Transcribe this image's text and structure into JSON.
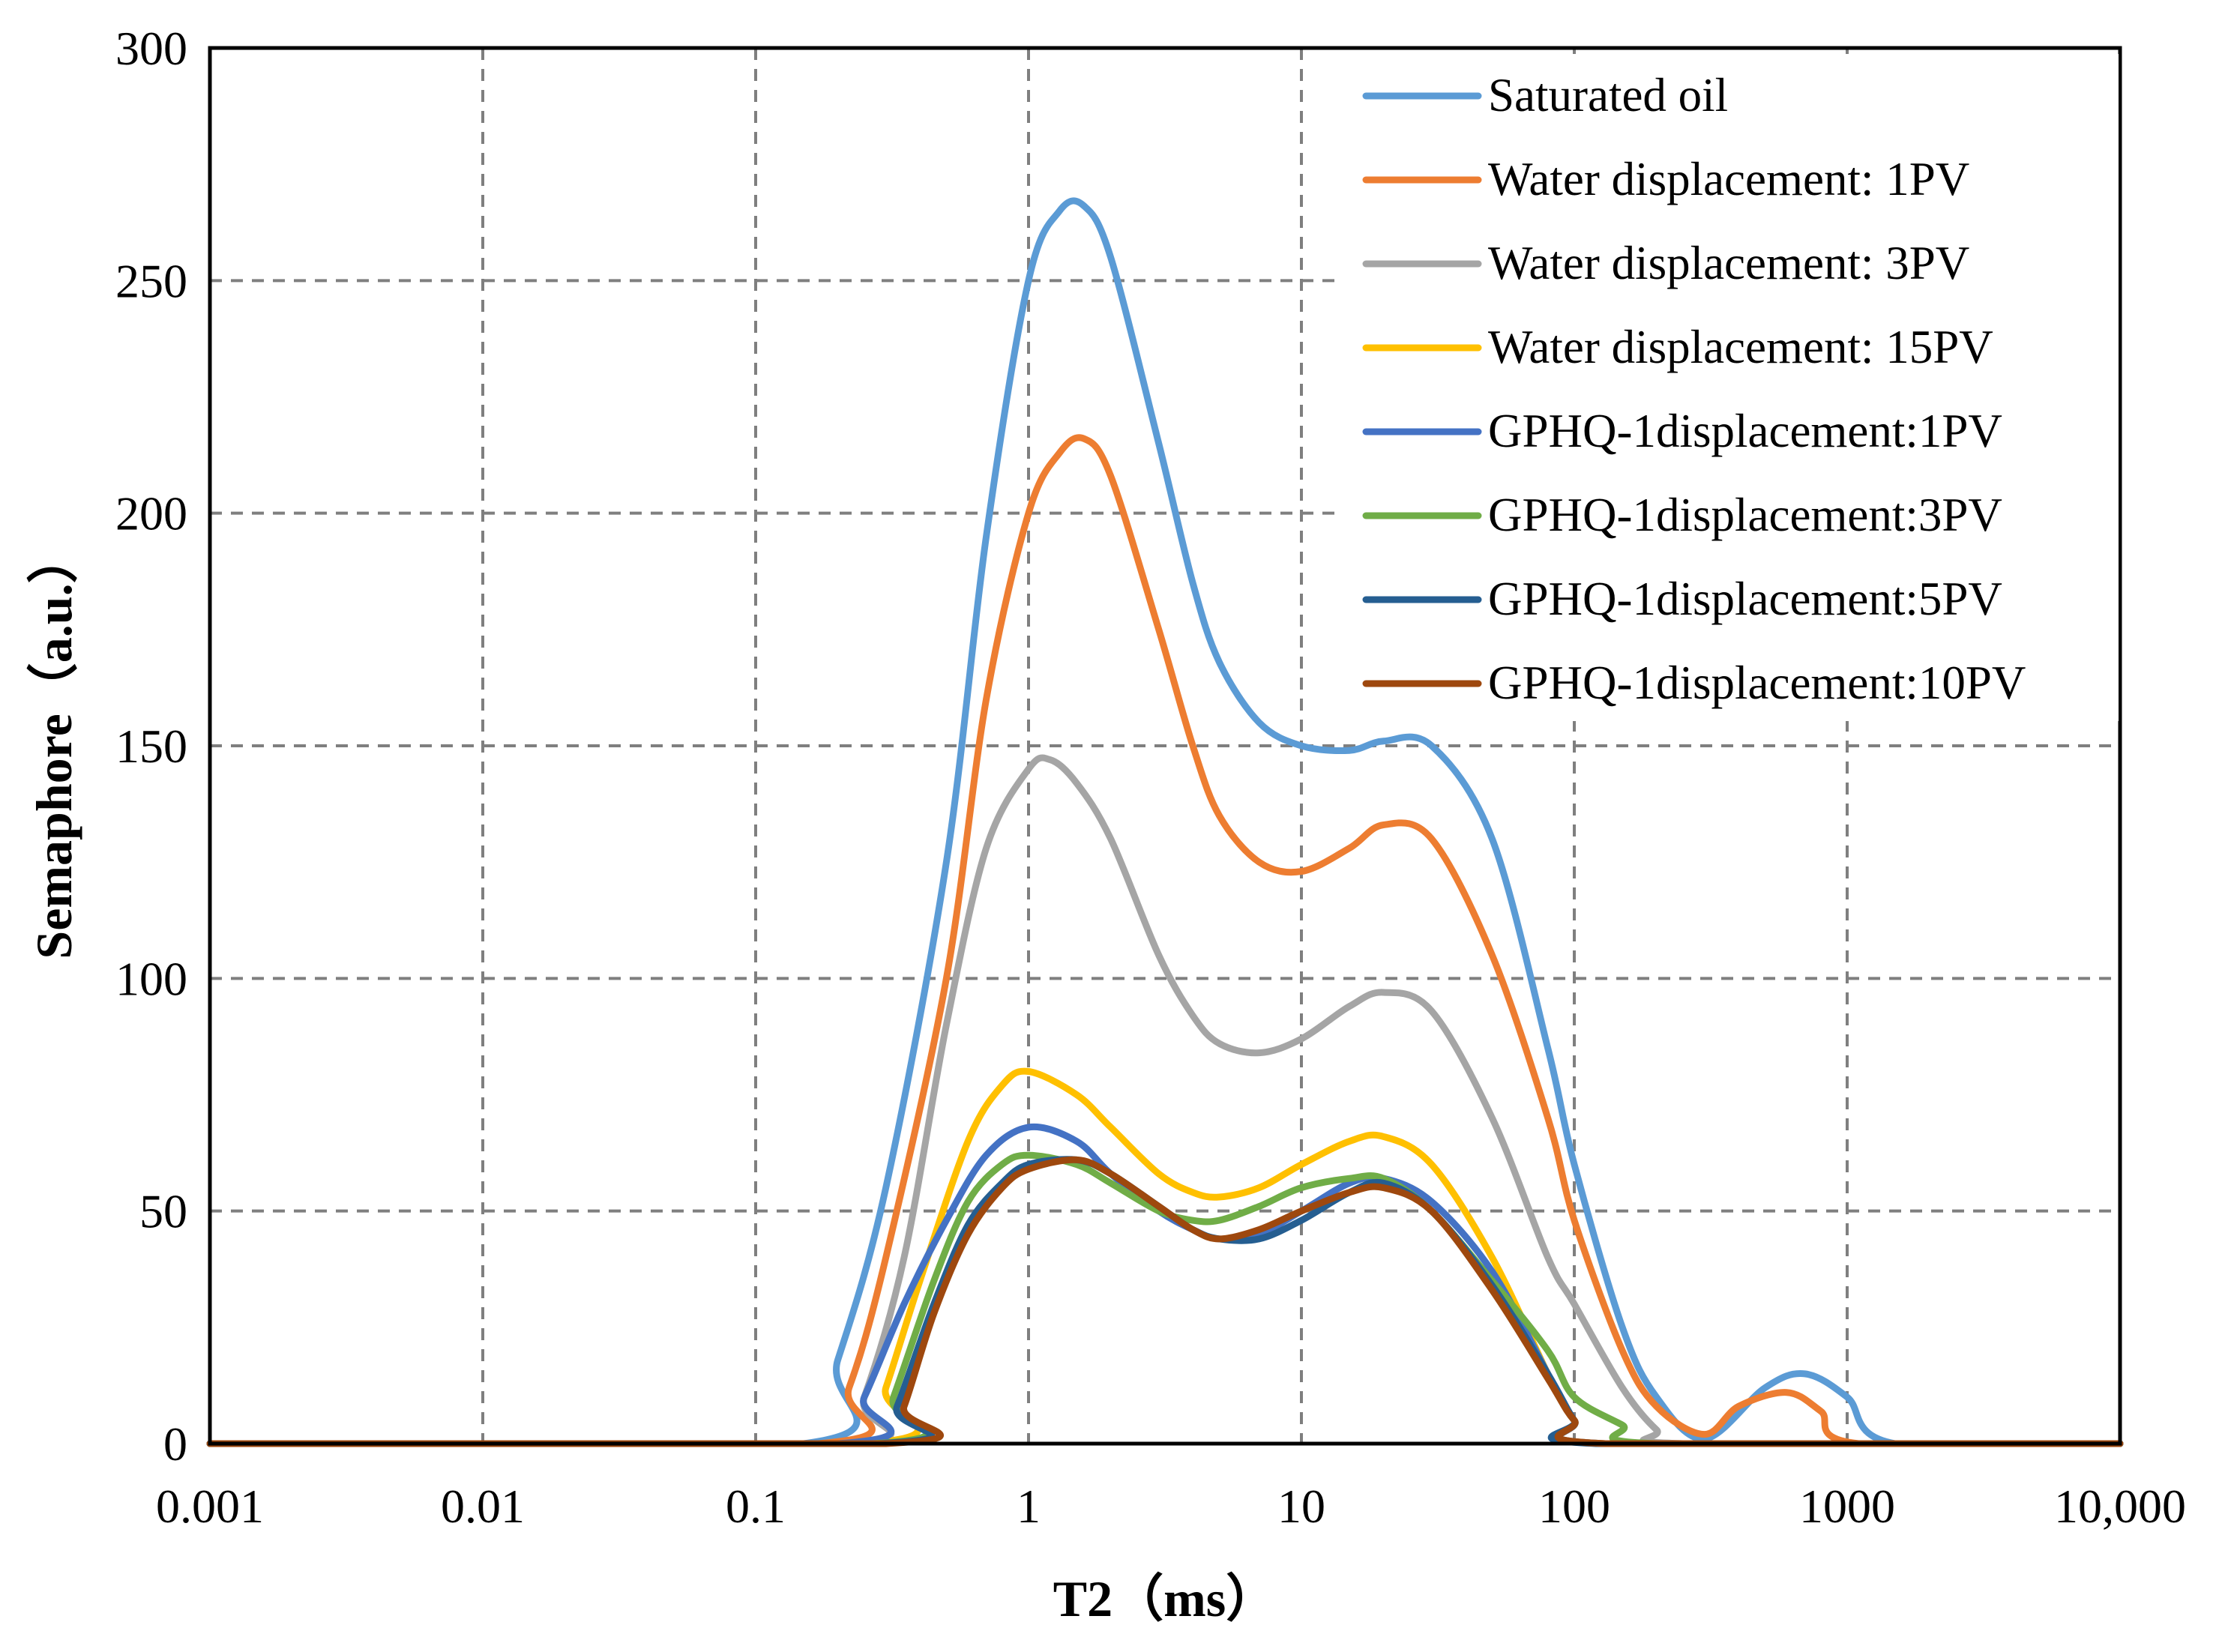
{
  "chart_data": {
    "type": "line",
    "title": "",
    "xlabel": "T2（ms）",
    "ylabel": "Semaphore（a.u.）",
    "xscale": "log",
    "xlim": [
      0.001,
      10000
    ],
    "ylim": [
      0,
      300
    ],
    "xticks": [
      0.001,
      0.01,
      0.1,
      1,
      10,
      100,
      1000,
      10000
    ],
    "xtick_labels": [
      "0.001",
      "0.01",
      "0.1",
      "1",
      "10",
      "100",
      "1000",
      "10,000"
    ],
    "yticks": [
      0,
      50,
      100,
      150,
      200,
      250,
      300
    ],
    "ytick_labels": [
      "0",
      "50",
      "100",
      "150",
      "200",
      "250",
      "300"
    ],
    "grid": true,
    "legend_position": "top-right",
    "series": [
      {
        "name": "Saturated oil",
        "color": "#5B9BD5",
        "points": [
          [
            0.001,
            0
          ],
          [
            0.15,
            0
          ],
          [
            0.2,
            18
          ],
          [
            0.3,
            55
          ],
          [
            0.5,
            125
          ],
          [
            0.7,
            195
          ],
          [
            1,
            250
          ],
          [
            1.3,
            265
          ],
          [
            1.6,
            266
          ],
          [
            2,
            255
          ],
          [
            3,
            215
          ],
          [
            4,
            185
          ],
          [
            5,
            168
          ],
          [
            7,
            155
          ],
          [
            10,
            150
          ],
          [
            15,
            149
          ],
          [
            20,
            151
          ],
          [
            30,
            150
          ],
          [
            50,
            130
          ],
          [
            80,
            85
          ],
          [
            100,
            60
          ],
          [
            150,
            25
          ],
          [
            200,
            10
          ],
          [
            300,
            1
          ],
          [
            500,
            12
          ],
          [
            700,
            15
          ],
          [
            1000,
            10
          ],
          [
            1500,
            0
          ],
          [
            10000,
            0
          ]
        ]
      },
      {
        "name": "Water displacement: 1PV",
        "color": "#ED7D31",
        "points": [
          [
            0.001,
            0
          ],
          [
            0.17,
            0
          ],
          [
            0.22,
            12
          ],
          [
            0.3,
            40
          ],
          [
            0.5,
            100
          ],
          [
            0.7,
            160
          ],
          [
            1,
            200
          ],
          [
            1.3,
            213
          ],
          [
            1.6,
            216
          ],
          [
            2,
            208
          ],
          [
            3,
            175
          ],
          [
            4,
            150
          ],
          [
            5,
            135
          ],
          [
            7,
            125
          ],
          [
            10,
            123
          ],
          [
            15,
            128
          ],
          [
            20,
            133
          ],
          [
            30,
            130
          ],
          [
            50,
            105
          ],
          [
            80,
            70
          ],
          [
            100,
            48
          ],
          [
            150,
            20
          ],
          [
            200,
            8
          ],
          [
            300,
            2
          ],
          [
            400,
            8
          ],
          [
            600,
            11
          ],
          [
            800,
            7
          ],
          [
            1100,
            0
          ],
          [
            10000,
            0
          ]
        ]
      },
      {
        "name": "Water displacement: 3PV",
        "color": "#A5A5A5",
        "points": [
          [
            0.001,
            0
          ],
          [
            0.2,
            0
          ],
          [
            0.25,
            10
          ],
          [
            0.35,
            40
          ],
          [
            0.5,
            90
          ],
          [
            0.7,
            128
          ],
          [
            1,
            145
          ],
          [
            1.2,
            147
          ],
          [
            1.5,
            142
          ],
          [
            2,
            130
          ],
          [
            3,
            105
          ],
          [
            4,
            92
          ],
          [
            5,
            86
          ],
          [
            7,
            84
          ],
          [
            10,
            87
          ],
          [
            15,
            94
          ],
          [
            20,
            97
          ],
          [
            30,
            93
          ],
          [
            50,
            70
          ],
          [
            80,
            40
          ],
          [
            100,
            30
          ],
          [
            150,
            12
          ],
          [
            200,
            3
          ],
          [
            250,
            0
          ],
          [
            10000,
            0
          ]
        ]
      },
      {
        "name": "Water displacement: 15PV",
        "color": "#FFC000",
        "points": [
          [
            0.001,
            0
          ],
          [
            0.25,
            0
          ],
          [
            0.3,
            12
          ],
          [
            0.4,
            35
          ],
          [
            0.6,
            65
          ],
          [
            0.8,
            77
          ],
          [
            1,
            80
          ],
          [
            1.5,
            75
          ],
          [
            2,
            68
          ],
          [
            3,
            58
          ],
          [
            4,
            54
          ],
          [
            5,
            53
          ],
          [
            7,
            55
          ],
          [
            10,
            60
          ],
          [
            15,
            65
          ],
          [
            20,
            66
          ],
          [
            30,
            60
          ],
          [
            50,
            40
          ],
          [
            80,
            15
          ],
          [
            100,
            5
          ],
          [
            130,
            0
          ],
          [
            10000,
            0
          ]
        ]
      },
      {
        "name": "GPHQ-1displacement:1PV",
        "color": "#4472C4",
        "points": [
          [
            0.001,
            0
          ],
          [
            0.2,
            0
          ],
          [
            0.25,
            10
          ],
          [
            0.35,
            30
          ],
          [
            0.5,
            48
          ],
          [
            0.7,
            62
          ],
          [
            1,
            68
          ],
          [
            1.5,
            65
          ],
          [
            2,
            58
          ],
          [
            3,
            50
          ],
          [
            4,
            46
          ],
          [
            5,
            44
          ],
          [
            7,
            45
          ],
          [
            10,
            50
          ],
          [
            15,
            56
          ],
          [
            20,
            57
          ],
          [
            30,
            52
          ],
          [
            50,
            37
          ],
          [
            80,
            15
          ],
          [
            100,
            5
          ],
          [
            130,
            0
          ],
          [
            10000,
            0
          ]
        ]
      },
      {
        "name": "GPHQ-1displacement:3PV",
        "color": "#70AD47",
        "points": [
          [
            0.001,
            0
          ],
          [
            0.27,
            0
          ],
          [
            0.32,
            10
          ],
          [
            0.45,
            35
          ],
          [
            0.6,
            52
          ],
          [
            0.8,
            60
          ],
          [
            1,
            62
          ],
          [
            1.5,
            60
          ],
          [
            2,
            56
          ],
          [
            3,
            50
          ],
          [
            4,
            48
          ],
          [
            5,
            48
          ],
          [
            7,
            51
          ],
          [
            10,
            55
          ],
          [
            15,
            57
          ],
          [
            20,
            57
          ],
          [
            30,
            50
          ],
          [
            50,
            35
          ],
          [
            80,
            20
          ],
          [
            100,
            10
          ],
          [
            150,
            4
          ],
          [
            200,
            0
          ],
          [
            10000,
            0
          ]
        ]
      },
      {
        "name": "GPHQ-1displacement:5PV",
        "color": "#255E91",
        "points": [
          [
            0.001,
            0
          ],
          [
            0.28,
            0
          ],
          [
            0.33,
            8
          ],
          [
            0.45,
            30
          ],
          [
            0.6,
            47
          ],
          [
            0.8,
            56
          ],
          [
            1,
            60
          ],
          [
            1.5,
            61
          ],
          [
            2,
            58
          ],
          [
            3,
            51
          ],
          [
            4,
            46
          ],
          [
            5,
            44
          ],
          [
            7,
            44
          ],
          [
            10,
            48
          ],
          [
            15,
            54
          ],
          [
            20,
            56
          ],
          [
            30,
            50
          ],
          [
            50,
            34
          ],
          [
            80,
            15
          ],
          [
            100,
            5
          ],
          [
            120,
            0
          ],
          [
            10000,
            0
          ]
        ]
      },
      {
        "name": "GPHQ-1displacement:10PV",
        "color": "#9E480E",
        "points": [
          [
            0.001,
            0
          ],
          [
            0.3,
            0
          ],
          [
            0.35,
            8
          ],
          [
            0.45,
            28
          ],
          [
            0.6,
            45
          ],
          [
            0.8,
            55
          ],
          [
            1,
            59
          ],
          [
            1.5,
            61
          ],
          [
            2,
            58
          ],
          [
            3,
            51
          ],
          [
            4,
            46
          ],
          [
            5,
            44
          ],
          [
            7,
            46
          ],
          [
            10,
            50
          ],
          [
            15,
            54
          ],
          [
            20,
            55
          ],
          [
            30,
            50
          ],
          [
            50,
            33
          ],
          [
            80,
            14
          ],
          [
            100,
            5
          ],
          [
            130,
            0
          ],
          [
            10000,
            0
          ]
        ]
      }
    ]
  }
}
